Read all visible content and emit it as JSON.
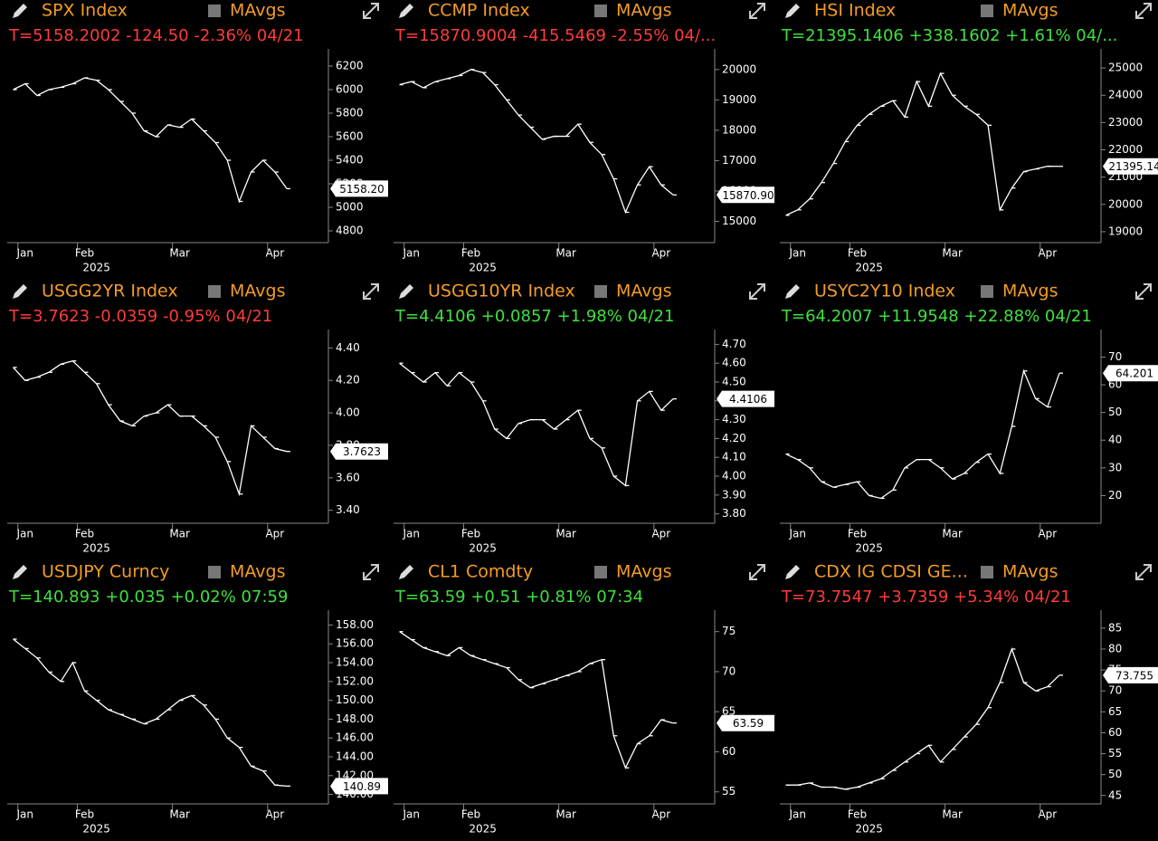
{
  "chart_data": [
    {
      "type": "line",
      "title": "SPX Index",
      "legend_label": "MAvgs",
      "quote": "T=5158.2002 -124.50 -2.36% 04/21",
      "quote_color": "#ff3b3b",
      "color": "#ffffff",
      "categories": [
        null,
        "Jan",
        null,
        null,
        null,
        null,
        "Feb",
        null,
        null,
        null,
        null,
        null,
        null,
        null,
        "Mar",
        null,
        null,
        null,
        null,
        null,
        null,
        null,
        "Apr",
        null
      ],
      "values": [
        6000,
        6050,
        5950,
        6000,
        6020,
        6050,
        6100,
        6080,
        6000,
        5900,
        5800,
        5650,
        5600,
        5700,
        5680,
        5750,
        5650,
        5550,
        5400,
        5050,
        5300,
        5400,
        5300,
        5158.2
      ],
      "last_label": "5158.20",
      "x_label": "2025",
      "ylim": [
        4700,
        6300
      ],
      "yticks": [
        4800,
        5000,
        5200,
        5400,
        5600,
        5800,
        6000,
        6200
      ]
    },
    {
      "type": "line",
      "title": "CCMP Index",
      "legend_label": "MAvgs",
      "quote": "T=15870.9004 -415.5469 -2.55% 04/...",
      "quote_color": "#ff3b3b",
      "color": "#ffffff",
      "categories": [
        null,
        "Jan",
        null,
        null,
        null,
        null,
        "Feb",
        null,
        null,
        null,
        null,
        null,
        null,
        null,
        "Mar",
        null,
        null,
        null,
        null,
        null,
        null,
        null,
        "Apr",
        null
      ],
      "values": [
        19500,
        19600,
        19400,
        19600,
        19700,
        19800,
        20000,
        19900,
        19500,
        19000,
        18500,
        18100,
        17700,
        17800,
        17800,
        18200,
        17600,
        17200,
        16400,
        15300,
        16200,
        16800,
        16200,
        15870.9
      ],
      "last_label": "15870.90",
      "x_label": "2025",
      "ylim": [
        14300,
        20500
      ],
      "yticks": [
        15000,
        16000,
        17000,
        18000,
        19000,
        20000
      ]
    },
    {
      "type": "line",
      "title": "HSI Index",
      "legend_label": "MAvgs",
      "quote": "T=21395.1406 +338.1602 +1.61% 04/...",
      "quote_color": "#3fe03f",
      "color": "#ffffff",
      "categories": [
        null,
        "Jan",
        null,
        null,
        null,
        null,
        "Feb",
        null,
        null,
        null,
        null,
        null,
        null,
        null,
        "Mar",
        null,
        null,
        null,
        null,
        null,
        null,
        null,
        "Apr",
        null
      ],
      "values": [
        19600,
        19800,
        20200,
        20800,
        21500,
        22300,
        22900,
        23300,
        23600,
        23800,
        23200,
        24500,
        23600,
        24800,
        24000,
        23600,
        23300,
        22900,
        19800,
        20600,
        21200,
        21300,
        21400,
        21395.14
      ],
      "last_label": "21395.14",
      "x_label": "2025",
      "ylim": [
        18600,
        25500
      ],
      "yticks": [
        19000,
        20000,
        21000,
        22000,
        23000,
        24000,
        25000
      ]
    },
    {
      "type": "line",
      "title": "USGG2YR Index",
      "legend_label": "MAvgs",
      "quote": "T=3.7623 -0.0359 -0.95% 04/21",
      "quote_color": "#ff3b3b",
      "color": "#ffffff",
      "categories": [
        null,
        "Jan",
        null,
        null,
        null,
        null,
        "Feb",
        null,
        null,
        null,
        null,
        null,
        null,
        null,
        "Mar",
        null,
        null,
        null,
        null,
        null,
        null,
        null,
        "Apr",
        null
      ],
      "values": [
        4.28,
        4.2,
        4.22,
        4.25,
        4.3,
        4.32,
        4.25,
        4.18,
        4.05,
        3.95,
        3.92,
        3.98,
        4.0,
        4.05,
        3.98,
        3.98,
        3.92,
        3.85,
        3.7,
        3.5,
        3.92,
        3.85,
        3.78,
        3.7623
      ],
      "last_label": "3.7623",
      "x_label": "2025",
      "ylim": [
        3.32,
        4.48
      ],
      "yticks": [
        {
          "value": 3.4,
          "label": "3.40"
        },
        {
          "value": 3.6,
          "label": "3.60"
        },
        {
          "value": 3.8,
          "label": "3.80"
        },
        {
          "value": 4.0,
          "label": "4.00"
        },
        {
          "value": 4.2,
          "label": "4.20"
        },
        {
          "value": 4.4,
          "label": "4.40"
        }
      ]
    },
    {
      "type": "line",
      "title": "USGG10YR Index",
      "legend_label": "MAvgs",
      "quote": "T=4.4106 +0.0857 +1.98% 04/21",
      "quote_color": "#3fe03f",
      "color": "#ffffff",
      "categories": [
        null,
        "Jan",
        null,
        null,
        null,
        null,
        "Feb",
        null,
        null,
        null,
        null,
        null,
        null,
        null,
        "Mar",
        null,
        null,
        null,
        null,
        null,
        null,
        null,
        "Apr",
        null
      ],
      "values": [
        4.6,
        4.55,
        4.5,
        4.55,
        4.48,
        4.55,
        4.5,
        4.4,
        4.25,
        4.2,
        4.28,
        4.3,
        4.3,
        4.25,
        4.3,
        4.35,
        4.2,
        4.15,
        4.0,
        3.95,
        4.4,
        4.45,
        4.35,
        4.4106
      ],
      "last_label": "4.4106",
      "x_label": "2025",
      "ylim": [
        3.75,
        4.75
      ],
      "yticks": [
        {
          "value": 3.8,
          "label": "3.80"
        },
        {
          "value": 3.9,
          "label": "3.90"
        },
        {
          "value": 4.0,
          "label": "4.00"
        },
        {
          "value": 4.1,
          "label": "4.10"
        },
        {
          "value": 4.2,
          "label": "4.20"
        },
        {
          "value": 4.3,
          "label": "4.30"
        },
        {
          "value": 4.4,
          "label": "4.40"
        },
        {
          "value": 4.5,
          "label": "4.50"
        },
        {
          "value": 4.6,
          "label": "4.60"
        },
        {
          "value": 4.7,
          "label": "4.70"
        }
      ]
    },
    {
      "type": "line",
      "title": "USYC2Y10 Index",
      "legend_label": "MAvgs",
      "quote": "T=64.2007 +11.9548 +22.88% 04/21",
      "quote_color": "#3fe03f",
      "color": "#ffffff",
      "categories": [
        null,
        "Jan",
        null,
        null,
        null,
        null,
        "Feb",
        null,
        null,
        null,
        null,
        null,
        null,
        null,
        "Mar",
        null,
        null,
        null,
        null,
        null,
        null,
        null,
        "Apr",
        null
      ],
      "values": [
        35,
        33,
        30,
        25,
        23,
        24,
        25,
        20,
        19,
        22,
        30,
        33,
        33,
        30,
        26,
        28,
        32,
        35,
        28,
        45,
        65,
        55,
        52,
        64.201
      ],
      "last_label": "64.201",
      "x_label": "2025",
      "ylim": [
        10,
        78
      ],
      "yticks": [
        20,
        30,
        40,
        50,
        60,
        70
      ]
    },
    {
      "type": "line",
      "title": "USDJPY Curncy",
      "legend_label": "MAvgs",
      "quote": "T=140.893 +0.035 +0.02% 07:59",
      "quote_color": "#3fe03f",
      "color": "#ffffff",
      "categories": [
        null,
        "Jan",
        null,
        null,
        null,
        null,
        "Feb",
        null,
        null,
        null,
        null,
        null,
        null,
        null,
        "Mar",
        null,
        null,
        null,
        null,
        null,
        null,
        null,
        "Apr",
        null
      ],
      "values": [
        156.5,
        155.5,
        154.5,
        153.0,
        152.0,
        154.0,
        151.0,
        150.0,
        149.0,
        148.5,
        148.0,
        147.5,
        148.0,
        149.0,
        150.0,
        150.5,
        149.5,
        148.0,
        146.0,
        145.0,
        143.0,
        142.5,
        141.0,
        140.89
      ],
      "last_label": "140.89",
      "x_label": "2025",
      "ylim": [
        139,
        159
      ],
      "yticks": [
        {
          "value": 140,
          "label": "140.00"
        },
        {
          "value": 142,
          "label": "142.00"
        },
        {
          "value": 144,
          "label": "144.00"
        },
        {
          "value": 146,
          "label": "146.00"
        },
        {
          "value": 148,
          "label": "148.00"
        },
        {
          "value": 150,
          "label": "150.00"
        },
        {
          "value": 152,
          "label": "152.00"
        },
        {
          "value": 154,
          "label": "154.00"
        },
        {
          "value": 156,
          "label": "156.00"
        },
        {
          "value": 158,
          "label": "158.00"
        }
      ]
    },
    {
      "type": "line",
      "title": "CL1 Comdty",
      "legend_label": "MAvgs",
      "quote": "T=63.59 +0.51 +0.81% 07:34",
      "quote_color": "#3fe03f",
      "color": "#ffffff",
      "categories": [
        null,
        "Jan",
        null,
        null,
        null,
        null,
        "Feb",
        null,
        null,
        null,
        null,
        null,
        null,
        null,
        "Mar",
        null,
        null,
        null,
        null,
        null,
        null,
        null,
        "Apr",
        null
      ],
      "values": [
        75,
        74,
        73,
        72.5,
        72,
        73,
        72,
        71.5,
        71,
        70.5,
        69,
        68,
        68.5,
        69,
        69.5,
        70,
        71,
        71.5,
        62,
        58,
        61,
        62,
        64,
        63.59
      ],
      "last_label": "63.59",
      "x_label": "2025",
      "ylim": [
        53.5,
        77
      ],
      "yticks": [
        55,
        60,
        65,
        70,
        75
      ]
    },
    {
      "type": "line",
      "title": "CDX IG CDSI GE...",
      "legend_label": "MAvgs",
      "quote": "T=73.7547 +3.7359 +5.34% 04/21",
      "quote_color": "#ff3b3b",
      "color": "#ffffff",
      "categories": [
        null,
        "Jan",
        null,
        null,
        null,
        null,
        "Feb",
        null,
        null,
        null,
        null,
        null,
        null,
        null,
        "Mar",
        null,
        null,
        null,
        null,
        null,
        null,
        null,
        "Apr",
        null
      ],
      "values": [
        47.5,
        47.5,
        48,
        47,
        47,
        46.5,
        47,
        48,
        49,
        51,
        53,
        55,
        57,
        53,
        56,
        59,
        62,
        66,
        72,
        80,
        72,
        70,
        71,
        73.755
      ],
      "last_label": "73.755",
      "x_label": "2025",
      "ylim": [
        43,
        88
      ],
      "yticks": [
        45,
        50,
        55,
        60,
        65,
        70,
        75,
        80,
        85
      ]
    }
  ]
}
